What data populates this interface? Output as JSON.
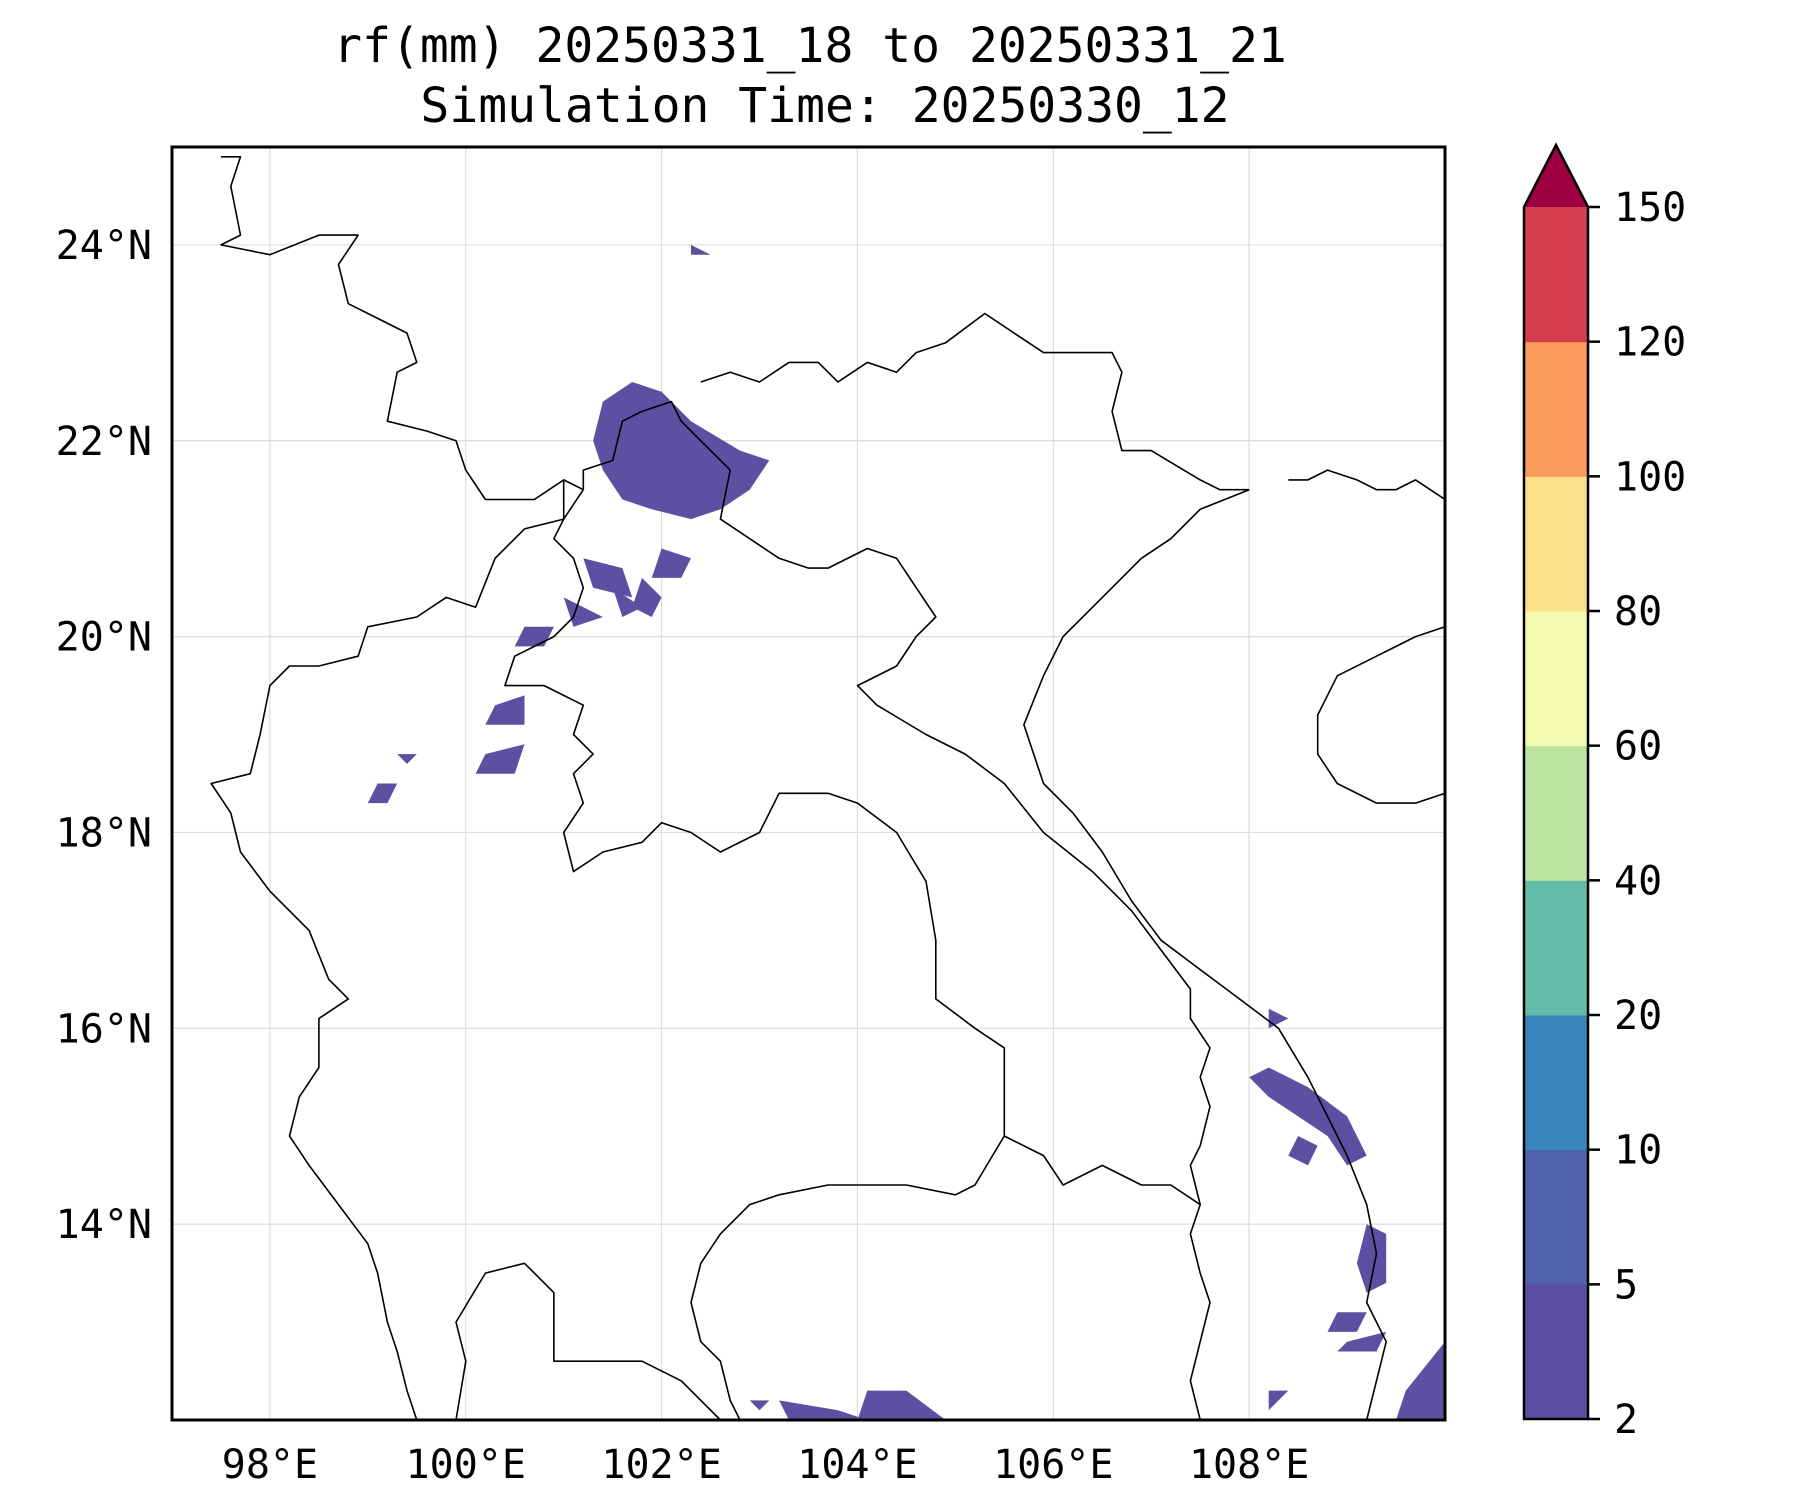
{
  "title": {
    "line1": "rf(mm) 20250331_18 to 20250331_21",
    "line2": "Simulation Time: 20250330_12"
  },
  "map": {
    "lon_range": [
      97,
      110
    ],
    "lat_range": [
      12,
      25
    ],
    "lon_ticks": [
      {
        "value": 98,
        "label": "98°E"
      },
      {
        "value": 100,
        "label": "100°E"
      },
      {
        "value": 102,
        "label": "102°E"
      },
      {
        "value": 104,
        "label": "104°E"
      },
      {
        "value": 106,
        "label": "106°E"
      },
      {
        "value": 108,
        "label": "108°E"
      }
    ],
    "lat_ticks": [
      {
        "value": 24,
        "label": "24°N"
      },
      {
        "value": 22,
        "label": "22°N"
      },
      {
        "value": 20,
        "label": "20°N"
      },
      {
        "value": 18,
        "label": "18°N"
      },
      {
        "value": 16,
        "label": "16°N"
      },
      {
        "value": 14,
        "label": "14°N"
      }
    ],
    "grid": true,
    "rain_color": "#5e4fa2"
  },
  "colorbar": {
    "extend": "max",
    "levels": [
      {
        "from": 2,
        "to": 5,
        "color": "#5e4fa2"
      },
      {
        "from": 5,
        "to": 10,
        "color": "#4f62ab"
      },
      {
        "from": 10,
        "to": 20,
        "color": "#3986bc"
      },
      {
        "from": 20,
        "to": 40,
        "color": "#63bca8"
      },
      {
        "from": 40,
        "to": 60,
        "color": "#bce4a0"
      },
      {
        "from": 60,
        "to": 80,
        "color": "#f3f9ae"
      },
      {
        "from": 80,
        "to": 100,
        "color": "#fde08b"
      },
      {
        "from": 100,
        "to": 120,
        "color": "#f99b5a"
      },
      {
        "from": 120,
        "to": 150,
        "color": "#d53e4f"
      }
    ],
    "over_color": "#9e0142",
    "tick_labels": [
      "2",
      "5",
      "10",
      "20",
      "40",
      "60",
      "80",
      "100",
      "120",
      "150"
    ]
  },
  "borders": [
    [
      [
        97.5,
        24.9
      ],
      [
        97.7,
        24.9
      ],
      [
        97.6,
        24.6
      ],
      [
        97.7,
        24.1
      ],
      [
        97.5,
        24.0
      ],
      [
        98.0,
        23.9
      ],
      [
        98.5,
        24.1
      ],
      [
        98.9,
        24.1
      ],
      [
        98.7,
        23.8
      ],
      [
        98.8,
        23.4
      ],
      [
        99.4,
        23.1
      ],
      [
        99.5,
        22.8
      ],
      [
        99.3,
        22.7
      ],
      [
        99.2,
        22.2
      ],
      [
        99.6,
        22.1
      ],
      [
        99.9,
        22.0
      ],
      [
        100.0,
        21.7
      ],
      [
        100.2,
        21.4
      ],
      [
        100.7,
        21.4
      ],
      [
        101.0,
        21.6
      ],
      [
        101.2,
        21.5
      ]
    ],
    [
      [
        101.2,
        21.5
      ],
      [
        101.2,
        21.7
      ],
      [
        101.5,
        21.8
      ],
      [
        101.6,
        22.2
      ],
      [
        101.8,
        22.3
      ],
      [
        102.1,
        22.4
      ],
      [
        102.2,
        22.2
      ],
      [
        102.4,
        22.0
      ],
      [
        102.7,
        21.7
      ]
    ],
    [
      [
        102.4,
        22.6
      ],
      [
        102.7,
        22.7
      ],
      [
        103.0,
        22.6
      ],
      [
        103.3,
        22.8
      ],
      [
        103.6,
        22.8
      ],
      [
        103.8,
        22.6
      ],
      [
        104.1,
        22.8
      ],
      [
        104.4,
        22.7
      ],
      [
        104.6,
        22.9
      ],
      [
        104.9,
        23.0
      ],
      [
        105.3,
        23.3
      ],
      [
        105.6,
        23.1
      ],
      [
        105.9,
        22.9
      ],
      [
        106.3,
        22.9
      ],
      [
        106.6,
        22.9
      ],
      [
        106.7,
        22.7
      ],
      [
        106.6,
        22.3
      ],
      [
        106.7,
        21.9
      ],
      [
        107.0,
        21.9
      ],
      [
        107.5,
        21.6
      ],
      [
        107.7,
        21.5
      ],
      [
        108.0,
        21.5
      ]
    ],
    [
      [
        101.2,
        21.5
      ],
      [
        101.0,
        21.2
      ],
      [
        100.6,
        21.1
      ],
      [
        100.3,
        20.8
      ],
      [
        100.1,
        20.3
      ],
      [
        99.8,
        20.4
      ],
      [
        99.5,
        20.2
      ],
      [
        99.0,
        20.1
      ],
      [
        98.9,
        19.8
      ],
      [
        98.5,
        19.7
      ],
      [
        98.2,
        19.7
      ],
      [
        98.0,
        19.5
      ],
      [
        97.9,
        19.0
      ],
      [
        97.8,
        18.6
      ],
      [
        97.4,
        18.5
      ],
      [
        97.6,
        18.2
      ],
      [
        97.7,
        17.8
      ],
      [
        98.0,
        17.4
      ],
      [
        98.4,
        17.0
      ],
      [
        98.6,
        16.5
      ],
      [
        98.8,
        16.3
      ],
      [
        98.5,
        16.1
      ],
      [
        98.5,
        15.6
      ],
      [
        98.3,
        15.3
      ],
      [
        98.2,
        14.9
      ],
      [
        98.4,
        14.6
      ],
      [
        98.7,
        14.2
      ],
      [
        99.0,
        13.8
      ],
      [
        99.1,
        13.5
      ],
      [
        99.2,
        13.0
      ],
      [
        99.3,
        12.7
      ],
      [
        99.4,
        12.3
      ],
      [
        99.5,
        12.0
      ]
    ],
    [
      [
        102.7,
        21.7
      ],
      [
        102.6,
        21.2
      ],
      [
        102.9,
        21.0
      ],
      [
        103.2,
        20.8
      ],
      [
        103.5,
        20.7
      ],
      [
        103.7,
        20.7
      ],
      [
        104.1,
        20.9
      ],
      [
        104.4,
        20.8
      ],
      [
        104.6,
        20.5
      ],
      [
        104.8,
        20.2
      ],
      [
        104.6,
        20.0
      ],
      [
        104.4,
        19.7
      ],
      [
        104.0,
        19.5
      ],
      [
        104.2,
        19.3
      ],
      [
        104.7,
        19.0
      ],
      [
        105.1,
        18.8
      ],
      [
        105.5,
        18.5
      ],
      [
        105.9,
        18.0
      ],
      [
        106.4,
        17.6
      ],
      [
        106.8,
        17.2
      ],
      [
        107.1,
        16.8
      ],
      [
        107.4,
        16.4
      ],
      [
        107.4,
        16.1
      ],
      [
        107.6,
        15.8
      ],
      [
        107.5,
        15.5
      ],
      [
        107.6,
        15.2
      ],
      [
        107.5,
        14.8
      ],
      [
        107.4,
        14.6
      ],
      [
        107.5,
        14.2
      ],
      [
        107.4,
        13.9
      ],
      [
        107.5,
        13.5
      ],
      [
        107.6,
        13.2
      ],
      [
        107.5,
        12.8
      ],
      [
        107.4,
        12.4
      ],
      [
        107.5,
        12.0
      ]
    ],
    [
      [
        101.0,
        21.6
      ],
      [
        101.0,
        21.2
      ],
      [
        100.9,
        21.0
      ],
      [
        101.1,
        20.8
      ],
      [
        101.2,
        20.5
      ],
      [
        101.1,
        20.2
      ],
      [
        100.9,
        20.0
      ],
      [
        100.5,
        19.8
      ],
      [
        100.4,
        19.5
      ],
      [
        100.8,
        19.5
      ],
      [
        101.2,
        19.3
      ],
      [
        101.1,
        19.0
      ],
      [
        101.3,
        18.8
      ],
      [
        101.1,
        18.6
      ],
      [
        101.2,
        18.3
      ],
      [
        101.0,
        18.0
      ],
      [
        101.1,
        17.6
      ],
      [
        101.4,
        17.8
      ],
      [
        101.8,
        17.9
      ],
      [
        102.0,
        18.1
      ],
      [
        102.3,
        18.0
      ],
      [
        102.6,
        17.8
      ],
      [
        103.0,
        18.0
      ],
      [
        103.2,
        18.4
      ],
      [
        103.7,
        18.4
      ],
      [
        104.0,
        18.3
      ],
      [
        104.4,
        18.0
      ],
      [
        104.7,
        17.5
      ],
      [
        104.8,
        16.9
      ],
      [
        104.8,
        16.3
      ],
      [
        105.2,
        16.0
      ],
      [
        105.5,
        15.8
      ],
      [
        105.5,
        15.4
      ],
      [
        105.5,
        14.9
      ],
      [
        105.2,
        14.4
      ],
      [
        105.0,
        14.3
      ],
      [
        104.5,
        14.4
      ],
      [
        104.1,
        14.4
      ],
      [
        103.7,
        14.4
      ],
      [
        103.2,
        14.3
      ],
      [
        102.9,
        14.2
      ],
      [
        102.6,
        13.9
      ],
      [
        102.4,
        13.6
      ],
      [
        102.3,
        13.2
      ],
      [
        102.4,
        12.8
      ],
      [
        102.6,
        12.6
      ],
      [
        102.7,
        12.2
      ],
      [
        102.8,
        12.0
      ]
    ],
    [
      [
        105.5,
        14.9
      ],
      [
        105.9,
        14.7
      ],
      [
        106.1,
        14.4
      ],
      [
        106.5,
        14.6
      ],
      [
        106.9,
        14.4
      ],
      [
        107.2,
        14.4
      ],
      [
        107.5,
        14.2
      ]
    ],
    [
      [
        99.9,
        12.0
      ],
      [
        100.0,
        12.6
      ],
      [
        99.9,
        13.0
      ],
      [
        100.2,
        13.5
      ],
      [
        100.6,
        13.6
      ],
      [
        100.9,
        13.3
      ],
      [
        100.9,
        12.9
      ],
      [
        100.9,
        12.6
      ],
      [
        101.4,
        12.6
      ],
      [
        101.8,
        12.6
      ],
      [
        102.2,
        12.4
      ],
      [
        102.4,
        12.2
      ],
      [
        102.6,
        12.0
      ]
    ],
    [
      [
        108.0,
        21.5
      ],
      [
        107.5,
        21.3
      ],
      [
        107.2,
        21.0
      ],
      [
        106.9,
        20.8
      ],
      [
        106.6,
        20.5
      ],
      [
        106.1,
        20.0
      ],
      [
        105.9,
        19.6
      ],
      [
        105.7,
        19.1
      ],
      [
        105.8,
        18.8
      ],
      [
        105.9,
        18.5
      ],
      [
        106.2,
        18.2
      ],
      [
        106.5,
        17.8
      ],
      [
        106.8,
        17.3
      ],
      [
        107.1,
        16.9
      ],
      [
        107.5,
        16.6
      ],
      [
        107.9,
        16.3
      ],
      [
        108.3,
        16.0
      ],
      [
        108.6,
        15.5
      ],
      [
        108.8,
        15.1
      ],
      [
        109.0,
        14.7
      ],
      [
        109.2,
        14.2
      ],
      [
        109.3,
        13.7
      ],
      [
        109.2,
        13.2
      ],
      [
        109.4,
        12.8
      ],
      [
        109.3,
        12.4
      ],
      [
        109.2,
        12.0
      ]
    ],
    [
      [
        110.0,
        20.1
      ],
      [
        109.7,
        20.0
      ],
      [
        109.3,
        19.8
      ],
      [
        108.9,
        19.6
      ],
      [
        108.7,
        19.2
      ],
      [
        108.7,
        18.8
      ],
      [
        108.9,
        18.5
      ],
      [
        109.3,
        18.3
      ],
      [
        109.7,
        18.3
      ],
      [
        110.0,
        18.4
      ]
    ],
    [
      [
        110.0,
        21.4
      ],
      [
        109.7,
        21.6
      ],
      [
        109.5,
        21.5
      ],
      [
        109.3,
        21.5
      ],
      [
        109.1,
        21.6
      ],
      [
        108.8,
        21.7
      ],
      [
        108.6,
        21.6
      ],
      [
        108.4,
        21.6
      ]
    ]
  ],
  "rain_areas": [
    [
      [
        101.4,
        22.4
      ],
      [
        101.7,
        22.6
      ],
      [
        102.0,
        22.5
      ],
      [
        102.3,
        22.2
      ],
      [
        102.8,
        21.9
      ],
      [
        103.1,
        21.8
      ],
      [
        102.9,
        21.5
      ],
      [
        102.6,
        21.3
      ],
      [
        102.3,
        21.2
      ],
      [
        101.9,
        21.3
      ],
      [
        101.6,
        21.4
      ],
      [
        101.4,
        21.7
      ],
      [
        101.3,
        22.0
      ]
    ],
    [
      [
        101.2,
        20.8
      ],
      [
        101.6,
        20.7
      ],
      [
        101.7,
        20.4
      ],
      [
        101.3,
        20.5
      ]
    ],
    [
      [
        101.5,
        20.5
      ],
      [
        101.8,
        20.3
      ],
      [
        101.6,
        20.2
      ]
    ],
    [
      [
        101.0,
        20.4
      ],
      [
        101.4,
        20.2
      ],
      [
        101.1,
        20.1
      ]
    ],
    [
      [
        101.8,
        20.6
      ],
      [
        102.0,
        20.4
      ],
      [
        101.9,
        20.2
      ],
      [
        101.7,
        20.3
      ]
    ],
    [
      [
        102.0,
        20.9
      ],
      [
        102.3,
        20.8
      ],
      [
        102.2,
        20.6
      ],
      [
        101.9,
        20.6
      ]
    ],
    [
      [
        100.6,
        20.1
      ],
      [
        100.9,
        20.1
      ],
      [
        100.8,
        19.9
      ],
      [
        100.5,
        19.9
      ]
    ],
    [
      [
        100.3,
        19.3
      ],
      [
        100.6,
        19.4
      ],
      [
        100.6,
        19.1
      ],
      [
        100.2,
        19.1
      ]
    ],
    [
      [
        100.2,
        18.8
      ],
      [
        100.6,
        18.9
      ],
      [
        100.5,
        18.6
      ],
      [
        100.1,
        18.6
      ]
    ],
    [
      [
        99.1,
        18.5
      ],
      [
        99.3,
        18.5
      ],
      [
        99.2,
        18.3
      ],
      [
        99.0,
        18.3
      ]
    ],
    [
      [
        99.3,
        18.8
      ],
      [
        99.5,
        18.8
      ],
      [
        99.4,
        18.7
      ]
    ],
    [
      [
        102.3,
        24.0
      ],
      [
        102.5,
        23.9
      ],
      [
        102.3,
        23.9
      ]
    ],
    [
      [
        108.2,
        16.2
      ],
      [
        108.4,
        16.1
      ],
      [
        108.2,
        16.0
      ]
    ],
    [
      [
        108.2,
        15.6
      ],
      [
        108.6,
        15.4
      ],
      [
        109.0,
        15.1
      ],
      [
        109.2,
        14.7
      ],
      [
        109.0,
        14.6
      ],
      [
        108.8,
        14.9
      ],
      [
        108.5,
        15.1
      ],
      [
        108.2,
        15.3
      ],
      [
        108.0,
        15.5
      ]
    ],
    [
      [
        108.5,
        14.9
      ],
      [
        108.7,
        14.8
      ],
      [
        108.6,
        14.6
      ],
      [
        108.4,
        14.7
      ]
    ],
    [
      [
        109.2,
        14.0
      ],
      [
        109.4,
        13.9
      ],
      [
        109.4,
        13.4
      ],
      [
        109.2,
        13.3
      ],
      [
        109.1,
        13.6
      ]
    ],
    [
      [
        108.9,
        13.1
      ],
      [
        109.2,
        13.1
      ],
      [
        109.1,
        12.9
      ],
      [
        108.8,
        12.9
      ]
    ],
    [
      [
        109.0,
        12.8
      ],
      [
        109.4,
        12.9
      ],
      [
        109.3,
        12.7
      ],
      [
        108.9,
        12.7
      ]
    ],
    [
      [
        109.6,
        12.3
      ],
      [
        110.0,
        12.8
      ],
      [
        110.0,
        12.0
      ],
      [
        109.5,
        12.0
      ]
    ],
    [
      [
        103.2,
        12.2
      ],
      [
        103.8,
        12.1
      ],
      [
        104.1,
        12.0
      ],
      [
        103.3,
        12.0
      ]
    ],
    [
      [
        104.1,
        12.3
      ],
      [
        104.5,
        12.3
      ],
      [
        104.9,
        12.0
      ],
      [
        104.0,
        12.0
      ]
    ],
    [
      [
        102.9,
        12.2
      ],
      [
        103.1,
        12.2
      ],
      [
        103.0,
        12.1
      ]
    ],
    [
      [
        108.2,
        12.3
      ],
      [
        108.4,
        12.3
      ],
      [
        108.2,
        12.1
      ]
    ]
  ]
}
